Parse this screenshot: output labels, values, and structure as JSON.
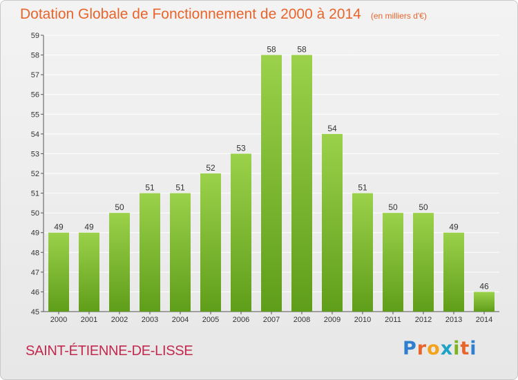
{
  "header": {
    "title": "Dotation Globale de Fonctionnement de 2000 à 2014",
    "subtitle": "(en milliers d'€)"
  },
  "footer": {
    "commune": "SAINT-ÉTIENNE-DE-LISSE",
    "logo": "Proxiti"
  },
  "colors": {
    "bar_top": "#9bd14b",
    "bar_bottom": "#5f9e1a",
    "title": "#e8642b",
    "commune": "#c2284e",
    "grid": "#ffffff"
  },
  "chart_data": {
    "type": "bar",
    "title": "Dotation Globale de Fonctionnement de 2000 à 2014",
    "subtitle": "(en milliers d'€)",
    "categories": [
      "2000",
      "2001",
      "2002",
      "2003",
      "2004",
      "2005",
      "2006",
      "2007",
      "2008",
      "2009",
      "2010",
      "2011",
      "2012",
      "2013",
      "2014"
    ],
    "values": [
      49,
      49,
      50,
      51,
      51,
      52,
      53,
      58,
      58,
      54,
      51,
      50,
      50,
      49,
      46
    ],
    "data_labels": [
      "49",
      "49",
      "50",
      "51",
      "51",
      "52",
      "53",
      "58",
      "58",
      "54",
      "51",
      "50",
      "50",
      "49",
      "46"
    ],
    "ylim": [
      45,
      59
    ],
    "yticks": [
      45,
      46,
      47,
      48,
      49,
      50,
      51,
      52,
      53,
      54,
      55,
      56,
      57,
      58,
      59
    ],
    "xlabel": "",
    "ylabel": "",
    "grid": true,
    "legend": "none"
  }
}
